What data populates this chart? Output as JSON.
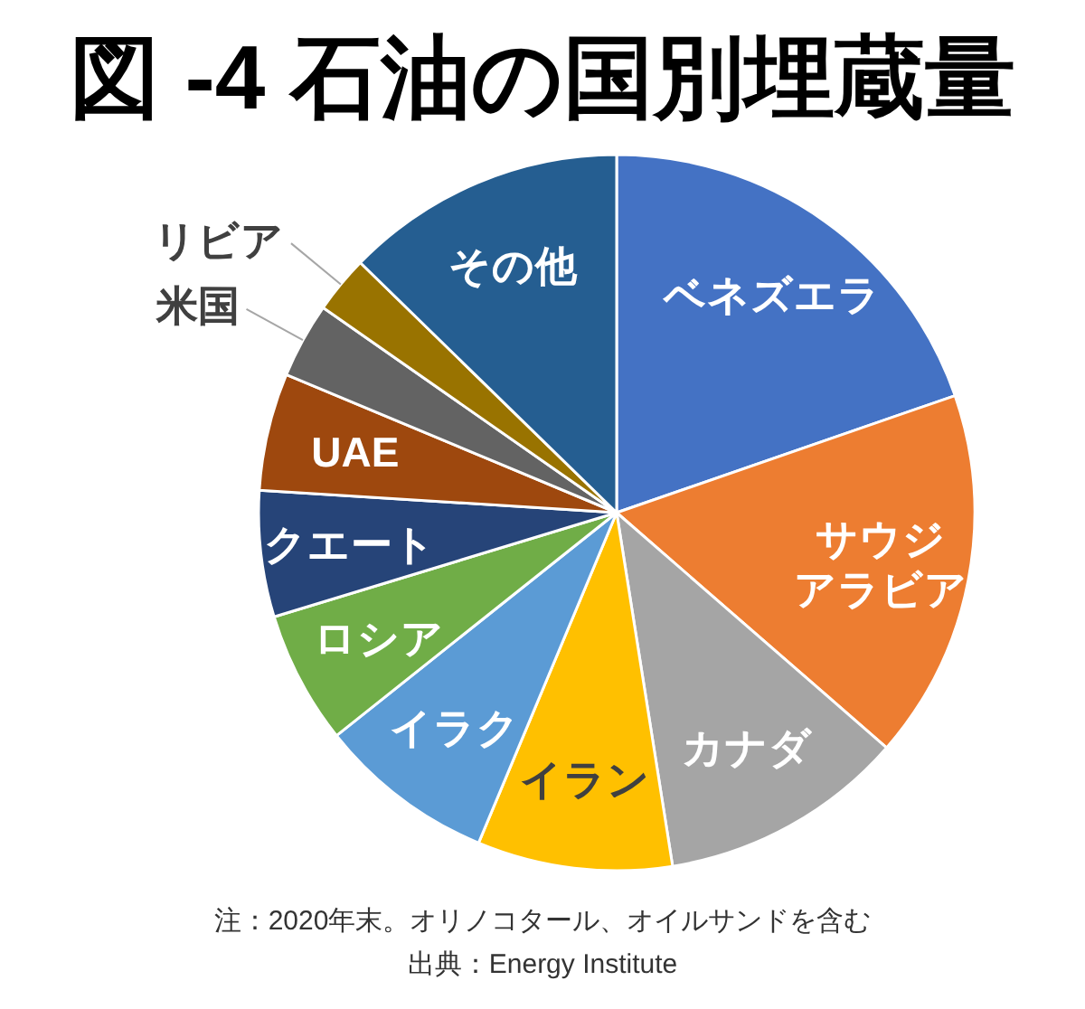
{
  "chart_data": {
    "type": "pie",
    "title": "図 -4 石油の国別埋蔵量",
    "categories": [
      "ベネズエラ",
      "サウジアラビア",
      "カナダ",
      "イラン",
      "イラク",
      "ロシア",
      "クエート",
      "UAE",
      "米国",
      "リビア",
      "その他"
    ],
    "values": [
      19.7,
      16.7,
      11.1,
      8.8,
      8.0,
      6.0,
      5.7,
      5.3,
      3.4,
      2.6,
      12.7
    ],
    "colors": [
      "#4472c4",
      "#ed7d31",
      "#a5a5a5",
      "#ffc000",
      "#5b9bd5",
      "#70ad47",
      "#264478",
      "#9e480e",
      "#636363",
      "#997300",
      "#255e91"
    ],
    "annotations": [
      "注：2020年末。オリノコタール、オイルサンドを含む",
      "出典：Energy Institute"
    ]
  }
}
